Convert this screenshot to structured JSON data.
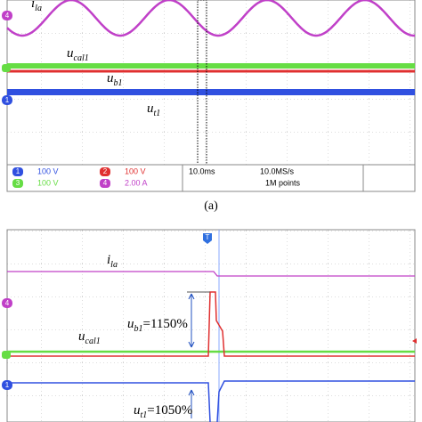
{
  "panel_a": {
    "markers": [
      "4",
      "1"
    ],
    "labels": {
      "ila": {
        "base": "i",
        "sub": "la"
      },
      "ucal": {
        "base": "u",
        "sub": "cal1"
      },
      "ub": {
        "base": "u",
        "sub": "b1"
      },
      "ut": {
        "base": "u",
        "sub": "t1"
      }
    },
    "status": {
      "ch1": {
        "num": "1",
        "scale": "100 V"
      },
      "ch2": {
        "num": "2",
        "scale": "100 V"
      },
      "ch3": {
        "num": "3",
        "scale": "100 V"
      },
      "ch4": {
        "num": "4",
        "scale": "2.00 A"
      },
      "timebase": "10.0ms",
      "rate": "10.0MS/s",
      "points": "1M points"
    },
    "caption": "(a)"
  },
  "panel_b": {
    "trigger": "T",
    "markers": [
      "4",
      "1"
    ],
    "labels": {
      "ila": {
        "base": "i",
        "sub": "la"
      },
      "ucal": {
        "base": "u",
        "sub": "cal1"
      },
      "ub": {
        "base": "u",
        "sub": "b1",
        "rest": "=1150%"
      },
      "ut": {
        "base": "u",
        "sub": "t1",
        "rest": "=1050%"
      }
    }
  }
}
